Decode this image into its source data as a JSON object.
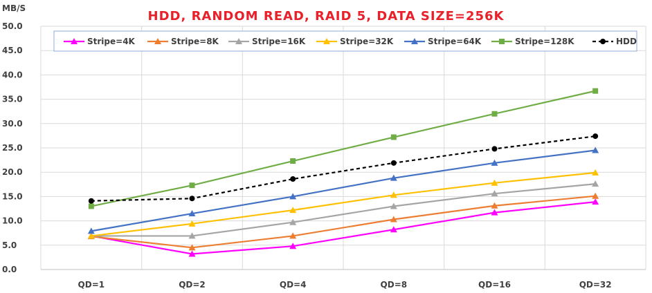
{
  "chart_data": {
    "type": "line",
    "title": "HDD, RANDOM READ, RAID 5, DATA SIZE=256K",
    "ylabel": "MB/S",
    "xlabel": "",
    "ylim": [
      0,
      50
    ],
    "yticks": [
      "0.0",
      "5.0",
      "10.0",
      "15.0",
      "20.0",
      "25.0",
      "30.0",
      "35.0",
      "40.0",
      "45.0",
      "50.0"
    ],
    "categories": [
      "QD=1",
      "QD=2",
      "QD=4",
      "QD=8",
      "QD=16",
      "QD=32"
    ],
    "grid": true,
    "legend_position": "top",
    "series": [
      {
        "name": "Stripe=4K",
        "color": "#ff00ff",
        "marker": "triangle",
        "dashed": false,
        "values": [
          6.9,
          3.2,
          4.8,
          8.2,
          11.7,
          13.9
        ]
      },
      {
        "name": "Stripe=8K",
        "color": "#ed7d31",
        "marker": "triangle",
        "dashed": false,
        "values": [
          6.8,
          4.5,
          6.9,
          10.3,
          13.1,
          15.1
        ]
      },
      {
        "name": "Stripe=16K",
        "color": "#a5a5a5",
        "marker": "triangle",
        "dashed": false,
        "values": [
          6.9,
          6.9,
          9.7,
          13.0,
          15.6,
          17.6
        ]
      },
      {
        "name": "Stripe=32K",
        "color": "#ffc000",
        "marker": "triangle",
        "dashed": false,
        "values": [
          6.9,
          9.4,
          12.2,
          15.3,
          17.8,
          19.9
        ]
      },
      {
        "name": "Stripe=64K",
        "color": "#4472c4",
        "marker": "triangle",
        "dashed": false,
        "values": [
          7.9,
          11.5,
          15.0,
          18.8,
          21.9,
          24.5
        ]
      },
      {
        "name": "Stripe=128K",
        "color": "#70ad47",
        "marker": "square",
        "dashed": false,
        "values": [
          13.0,
          17.3,
          22.3,
          27.2,
          32.0,
          36.7
        ]
      },
      {
        "name": "HDD",
        "color": "#000000",
        "marker": "circle",
        "dashed": true,
        "values": [
          14.1,
          14.6,
          18.6,
          21.9,
          24.8,
          27.4
        ]
      }
    ]
  }
}
